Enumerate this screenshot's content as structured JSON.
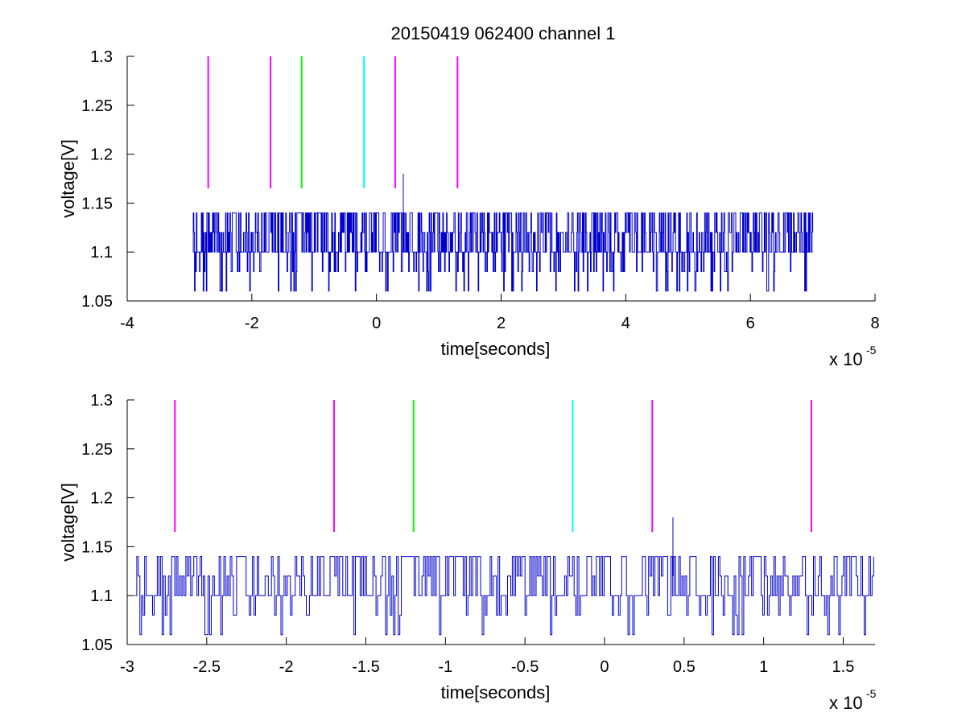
{
  "chart_data": {
    "type": "line",
    "title": "20150419 062400 channel 1",
    "colors": {
      "signal": "#0000cc",
      "magenta": "#ff00ff",
      "green": "#00ff00",
      "cyan": "#00ffff",
      "axis": "#000000"
    },
    "markers": [
      {
        "x": -2.7,
        "color": "magenta"
      },
      {
        "x": -1.7,
        "color": "magenta"
      },
      {
        "x": -1.2,
        "color": "green"
      },
      {
        "x": -0.2,
        "color": "cyan"
      },
      {
        "x": 0.3,
        "color": "magenta"
      },
      {
        "x": 1.3,
        "color": "magenta"
      }
    ],
    "marker_y_range": [
      1.165,
      1.3
    ],
    "signal": {
      "levels": [
        1.06,
        1.08,
        1.1,
        1.12,
        1.14
      ],
      "baseline": 1.1,
      "x_start": -2.95,
      "x_end": 7.0,
      "spike": {
        "x": 0.43,
        "y": 1.18
      }
    },
    "subplots": [
      {
        "xlabel": "time[seconds]",
        "ylabel": "voltage[V]",
        "xlim": [
          -4,
          8
        ],
        "ylim": [
          1.05,
          1.3
        ],
        "x_ticks": [
          -4,
          -2,
          0,
          2,
          4,
          6,
          8
        ],
        "x_tick_labels": [
          "-4",
          "-2",
          "0",
          "2",
          "4",
          "6",
          "8"
        ],
        "y_ticks": [
          1.05,
          1.1,
          1.15,
          1.2,
          1.25,
          1.3
        ],
        "y_tick_labels": [
          "1.05",
          "1.1",
          "1.15",
          "1.2",
          "1.25",
          "1.3"
        ],
        "x_exponent": {
          "base": "x 10",
          "power": "-5"
        }
      },
      {
        "xlabel": "time[seconds]",
        "ylabel": "voltage[V]",
        "xlim": [
          -3.0,
          1.7
        ],
        "ylim": [
          1.05,
          1.3
        ],
        "x_ticks": [
          -3,
          -2.5,
          -2,
          -1.5,
          -1,
          -0.5,
          0,
          0.5,
          1,
          1.5
        ],
        "x_tick_labels": [
          "-3",
          "-2.5",
          "-2",
          "-1.5",
          "-1",
          "-0.5",
          "0",
          "0.5",
          "1",
          "1.5"
        ],
        "y_ticks": [
          1.05,
          1.1,
          1.15,
          1.2,
          1.25,
          1.3
        ],
        "y_tick_labels": [
          "1.05",
          "1.1",
          "1.15",
          "1.2",
          "1.25",
          "1.3"
        ],
        "x_exponent": {
          "base": "x 10",
          "power": "-5"
        }
      }
    ]
  }
}
